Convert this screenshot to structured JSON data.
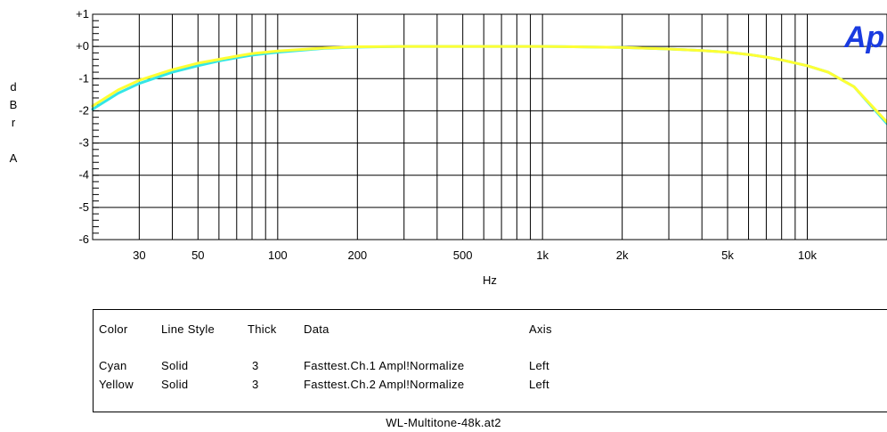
{
  "chart_data": {
    "type": "line",
    "title": "",
    "xlabel": "Hz",
    "ylabel": "dBr A",
    "ylabel_chars": [
      "d",
      "B",
      "r",
      "",
      "A"
    ],
    "x_scale": "log",
    "xlim": [
      20,
      20000
    ],
    "ylim": [
      -6,
      1
    ],
    "x_ticks": [
      30,
      50,
      100,
      200,
      500,
      1000,
      2000,
      5000,
      10000
    ],
    "x_tick_labels": [
      "30",
      "50",
      "100",
      "200",
      "500",
      "1k",
      "2k",
      "5k",
      "10k"
    ],
    "y_ticks": [
      1,
      0,
      -1,
      -2,
      -3,
      -4,
      -5,
      -6
    ],
    "y_tick_labels": [
      "+1",
      "+0",
      "-1",
      "-2",
      "-3",
      "-4",
      "-5",
      "-6"
    ],
    "grid": true,
    "watermark": "Ap",
    "series": [
      {
        "name": "Fasttest.Ch.1 Ampl!Normalize",
        "color": "#33e6e6",
        "x": [
          20,
          25,
          30,
          40,
          50,
          60,
          70,
          80,
          100,
          150,
          200,
          300,
          500,
          1000,
          2000,
          3000,
          4000,
          5000,
          6000,
          7000,
          8000,
          10000,
          12000,
          15000,
          20000
        ],
        "y": [
          -1.95,
          -1.45,
          -1.15,
          -0.8,
          -0.6,
          -0.45,
          -0.35,
          -0.27,
          -0.18,
          -0.06,
          -0.02,
          0,
          0,
          0,
          -0.03,
          -0.08,
          -0.13,
          -0.18,
          -0.25,
          -0.33,
          -0.42,
          -0.6,
          -0.8,
          -1.25,
          -2.4
        ]
      },
      {
        "name": "Fasttest.Ch.2 Ampl!Normalize",
        "color": "#ffff33",
        "x": [
          20,
          25,
          30,
          40,
          50,
          60,
          70,
          80,
          100,
          150,
          200,
          300,
          500,
          1000,
          2000,
          3000,
          4000,
          5000,
          6000,
          7000,
          8000,
          10000,
          12000,
          15000,
          20000
        ],
        "y": [
          -1.85,
          -1.35,
          -1.05,
          -0.72,
          -0.52,
          -0.4,
          -0.3,
          -0.22,
          -0.14,
          -0.05,
          -0.01,
          0,
          0,
          0,
          -0.03,
          -0.08,
          -0.13,
          -0.18,
          -0.25,
          -0.33,
          -0.42,
          -0.6,
          -0.8,
          -1.25,
          -2.35
        ]
      }
    ]
  },
  "legend": {
    "headers": {
      "color": "Color",
      "style": "Line Style",
      "thick": "Thick",
      "data": "Data",
      "axis": "Axis"
    },
    "rows": [
      {
        "color": "Cyan",
        "style": "Solid",
        "thick": "3",
        "data": "Fasttest.Ch.1 Ampl!Normalize",
        "axis": "Left"
      },
      {
        "color": "Yellow",
        "style": "Solid",
        "thick": "3",
        "data": "Fasttest.Ch.2 Ampl!Normalize",
        "axis": "Left"
      }
    ]
  },
  "file_label": "WL-Multitone-48k.at2"
}
